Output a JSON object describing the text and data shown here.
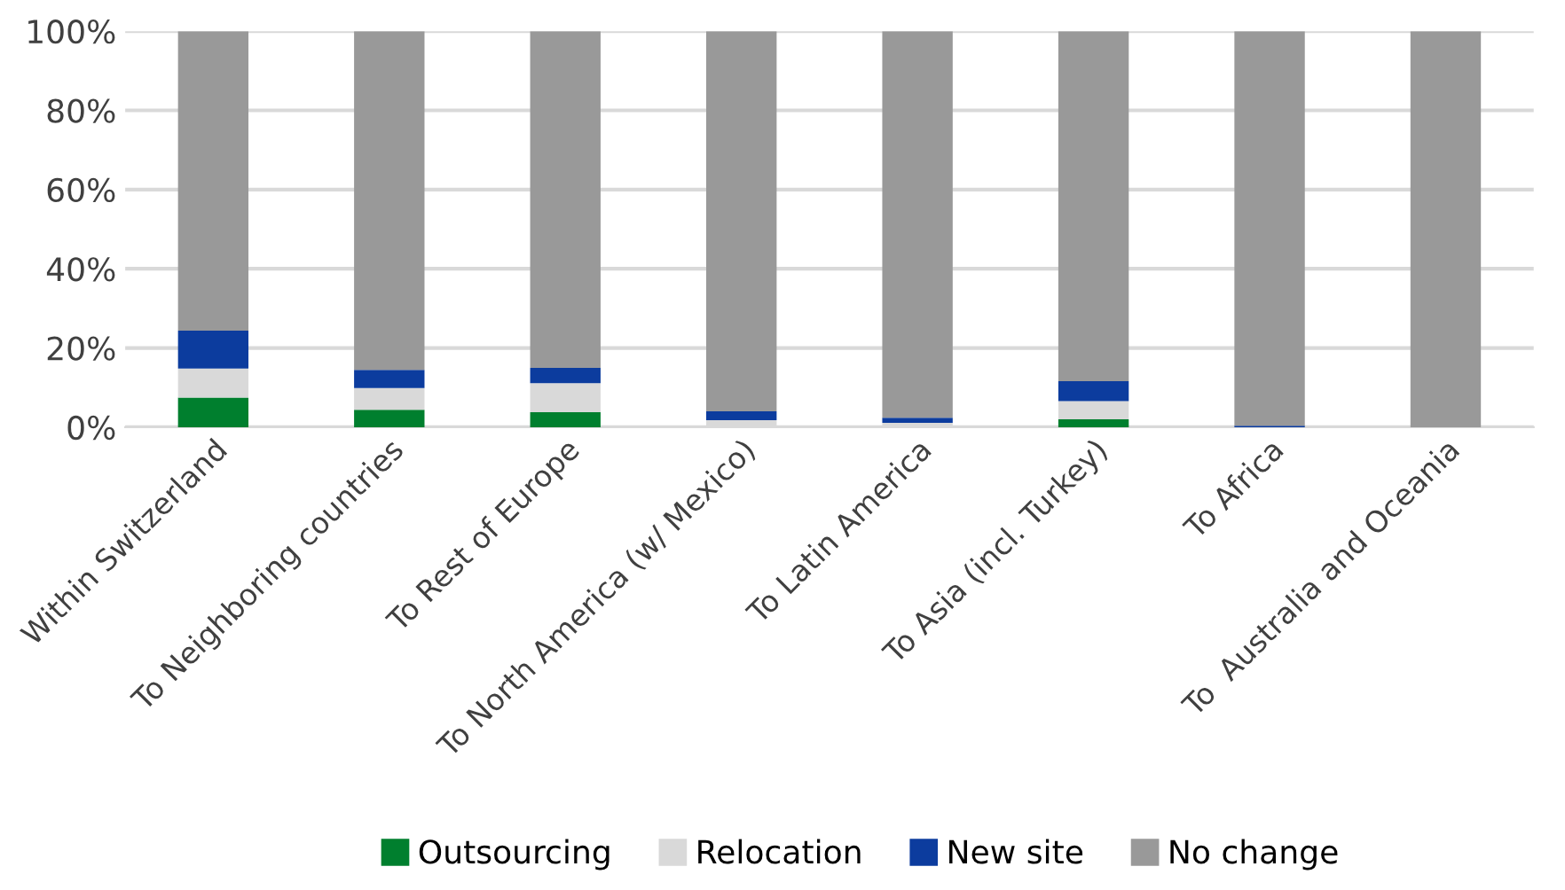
{
  "chart_data": {
    "type": "bar",
    "stacked": true,
    "categories": [
      "Within Switzerland",
      "To Neighboring countries",
      "To Rest of Europe",
      "To North America (w/ Mexico)",
      "To Latin America",
      "To Asia (incl. Turkey)",
      "To Africa",
      "To  Australia and Oceania"
    ],
    "series": [
      {
        "name": "Outsourcing",
        "color": "#007f2e",
        "values": [
          7.5,
          4.4,
          3.8,
          0,
          0,
          2.0,
          0,
          0
        ]
      },
      {
        "name": "Relocation",
        "color": "#d9d9d9",
        "values": [
          7.3,
          5.5,
          7.3,
          1.8,
          1.1,
          4.6,
          0,
          0
        ]
      },
      {
        "name": "New site",
        "color": "#0c3c9e",
        "values": [
          9.6,
          4.6,
          3.9,
          2.2,
          1.3,
          5.0,
          0.4,
          0
        ]
      },
      {
        "name": "No change",
        "color": "#999999",
        "values": [
          75.6,
          85.5,
          85.0,
          96.0,
          97.6,
          88.4,
          99.6,
          100
        ]
      }
    ],
    "ylim": [
      0,
      100
    ],
    "yticks": [
      {
        "value": 0,
        "label": "0%"
      },
      {
        "value": 20,
        "label": "20%"
      },
      {
        "value": 40,
        "label": "40%"
      },
      {
        "value": 60,
        "label": "60%"
      },
      {
        "value": 80,
        "label": "80%"
      },
      {
        "value": 100,
        "label": "100%"
      }
    ],
    "grid": "y",
    "legend": "bottom"
  }
}
